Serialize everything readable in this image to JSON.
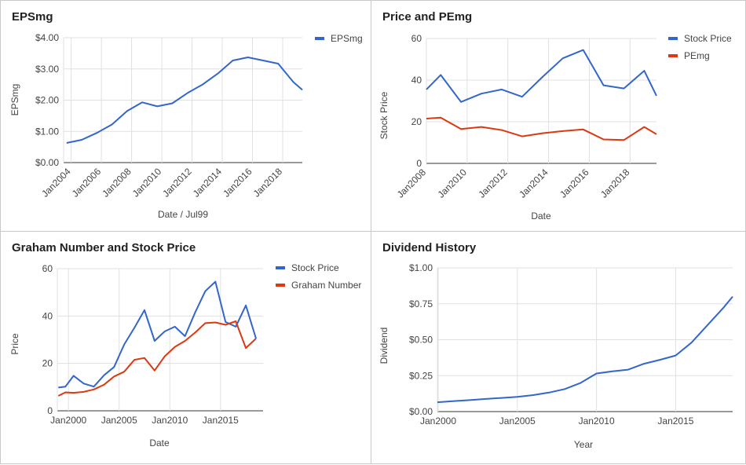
{
  "colors": {
    "blue": "#3366cc",
    "red": "#dc3912",
    "grid": "#e0e0e0",
    "axis": "#333333",
    "text": "#444444"
  },
  "chart_data": [
    {
      "type": "line",
      "title": "EPSmg",
      "xlabel": "Date / Jul99",
      "ylabel": "EPSmg",
      "x_ticks": [
        "Jan2004",
        "Jan2006",
        "Jan2008",
        "Jan2010",
        "Jan2012",
        "Jan2014",
        "Jan2016",
        "Jan2018"
      ],
      "y_ticks": [
        "$0.00",
        "$1.00",
        "$2.00",
        "$3.00",
        "$4.00"
      ],
      "xlim": [
        2003.5,
        2019.3
      ],
      "ylim": [
        0,
        4
      ],
      "legend_position": "right",
      "grid": true,
      "series": [
        {
          "name": "EPSmg",
          "color": "#3366cc",
          "x": [
            2003.7,
            2004.7,
            2005.7,
            2006.7,
            2007.7,
            2008.7,
            2009.7,
            2010.7,
            2011.7,
            2012.7,
            2013.7,
            2014.7,
            2015.7,
            2016.7,
            2017.7,
            2018.7,
            2019.3
          ],
          "y": [
            0.63,
            0.73,
            0.95,
            1.22,
            1.65,
            1.93,
            1.8,
            1.9,
            2.23,
            2.5,
            2.85,
            3.27,
            3.37,
            3.27,
            3.17,
            2.58,
            2.33
          ]
        }
      ]
    },
    {
      "type": "line",
      "title": "Price and PEmg",
      "xlabel": "Date",
      "ylabel": "Stock Price",
      "x_ticks": [
        "Jan2008",
        "Jan2010",
        "Jan2012",
        "Jan2014",
        "Jan2016",
        "Jan2018"
      ],
      "y_ticks": [
        "0",
        "20",
        "40",
        "60"
      ],
      "xlim": [
        2008.0,
        2019.3
      ],
      "ylim": [
        0,
        60
      ],
      "legend_position": "right",
      "grid": true,
      "series": [
        {
          "name": "Stock Price",
          "color": "#3366cc",
          "x": [
            2008.0,
            2008.7,
            2009.7,
            2010.7,
            2011.7,
            2012.7,
            2013.7,
            2014.7,
            2015.7,
            2016.7,
            2017.7,
            2018.7,
            2019.3
          ],
          "y": [
            35.5,
            42.5,
            29.5,
            33.5,
            35.5,
            32,
            41.5,
            50.5,
            54.5,
            37.5,
            36,
            44.5,
            32.5
          ]
        },
        {
          "name": "PEmg",
          "color": "#dc3912",
          "x": [
            2008.0,
            2008.7,
            2009.7,
            2010.7,
            2011.7,
            2012.7,
            2013.7,
            2014.7,
            2015.7,
            2016.7,
            2017.7,
            2018.7,
            2019.3
          ],
          "y": [
            21.5,
            22,
            16.5,
            17.5,
            16,
            13,
            14.5,
            15.5,
            16.3,
            11.5,
            11.2,
            17.5,
            14
          ]
        }
      ]
    },
    {
      "type": "line",
      "title": "Graham Number and Stock Price",
      "xlabel": "Date",
      "ylabel": "Price",
      "x_ticks": [
        "Jan2000",
        "Jan2005",
        "Jan2010",
        "Jan2015"
      ],
      "y_ticks": [
        "0",
        "20",
        "40",
        "60"
      ],
      "xlim": [
        1998.9,
        2019.2
      ],
      "ylim": [
        0,
        60
      ],
      "legend_position": "right",
      "grid": true,
      "series": [
        {
          "name": "Stock Price",
          "color": "#3366cc",
          "x": [
            1999.0,
            1999.7,
            2000.5,
            2001.5,
            2002.5,
            2003.5,
            2004.5,
            2005.5,
            2006.5,
            2007.5,
            2008.5,
            2009.5,
            2010.5,
            2011.5,
            2012.5,
            2013.5,
            2014.5,
            2015.5,
            2016.5,
            2017.5,
            2018.5
          ],
          "y": [
            9.8,
            10.2,
            14.8,
            11.5,
            10.2,
            15,
            18.5,
            28,
            35,
            42.5,
            29.5,
            33.5,
            35.5,
            31.5,
            41.5,
            50.5,
            54.5,
            37.5,
            35.5,
            44.5,
            30.5
          ]
        },
        {
          "name": "Graham Number",
          "color": "#dc3912",
          "x": [
            1999.0,
            1999.7,
            2000.5,
            2001.5,
            2002.5,
            2003.5,
            2004.5,
            2005.5,
            2006.5,
            2007.5,
            2008.5,
            2009.5,
            2010.5,
            2011.5,
            2012.5,
            2013.5,
            2014.5,
            2015.5,
            2016.5,
            2017.5,
            2018.5
          ],
          "y": [
            6.3,
            7.8,
            7.6,
            8,
            9,
            11,
            14.5,
            16.5,
            21.5,
            22.3,
            17,
            23,
            27,
            29.5,
            33,
            37,
            37.3,
            36.3,
            37.8,
            26.5,
            30.5
          ]
        }
      ]
    },
    {
      "type": "line",
      "title": "Dividend History",
      "xlabel": "Year",
      "ylabel": "Dividend",
      "x_ticks": [
        "Jan2000",
        "Jan2005",
        "Jan2010",
        "Jan2015"
      ],
      "y_ticks": [
        "$0.00",
        "$0.25",
        "$0.50",
        "$0.75",
        "$1.00"
      ],
      "xlim": [
        1999.95,
        2018.6
      ],
      "ylim": [
        0,
        1
      ],
      "legend_position": "none",
      "grid": true,
      "series": [
        {
          "name": "",
          "color": "#3366cc",
          "x": [
            1999.95,
            2001,
            2002,
            2003,
            2004,
            2005,
            2006,
            2007,
            2008,
            2009,
            2010,
            2011,
            2012,
            2013,
            2014,
            2015,
            2016,
            2017,
            2018,
            2018.6
          ],
          "y": [
            0.065,
            0.073,
            0.08,
            0.088,
            0.095,
            0.103,
            0.115,
            0.132,
            0.157,
            0.2,
            0.265,
            0.28,
            0.292,
            0.333,
            0.36,
            0.39,
            0.48,
            0.6,
            0.72,
            0.8
          ]
        }
      ]
    }
  ]
}
